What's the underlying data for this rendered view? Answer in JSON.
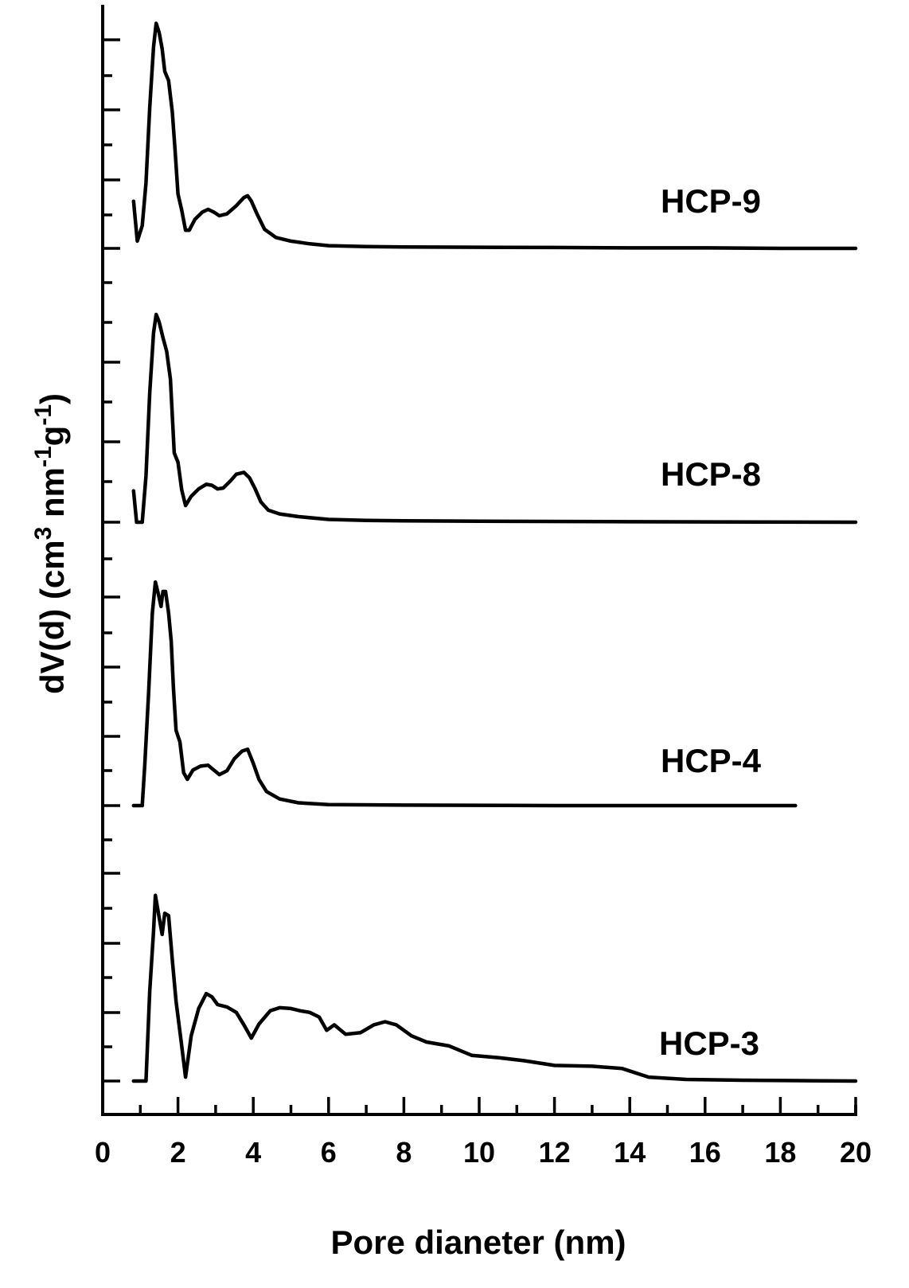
{
  "chart_data": {
    "type": "line",
    "title": "",
    "xlabel": "Pore dianeter (nm)",
    "ylabel_parts": {
      "a": "dV(d) (cm",
      "b": "3",
      "c": " nm",
      "d": "-1",
      "e": "g",
      "f": "-1",
      "g": ")"
    },
    "xlim": [
      0,
      20
    ],
    "xticks": [
      0,
      2,
      4,
      6,
      8,
      10,
      12,
      14,
      16,
      18,
      20
    ],
    "y_tick_labels": "none",
    "grid": false,
    "legend": "none (series labeled directly to the right of each curve)",
    "layout": "stacked curves with vertical offsets",
    "series": [
      {
        "name": "HCP-9",
        "points": [
          [
            0.82,
            0.52
          ],
          [
            0.92,
            0.08
          ],
          [
            1.05,
            0.25
          ],
          [
            1.15,
            0.72
          ],
          [
            1.25,
            1.55
          ],
          [
            1.35,
            2.22
          ],
          [
            1.42,
            2.48
          ],
          [
            1.5,
            2.38
          ],
          [
            1.58,
            2.2
          ],
          [
            1.65,
            1.95
          ],
          [
            1.75,
            1.85
          ],
          [
            1.85,
            1.5
          ],
          [
            1.92,
            1.1
          ],
          [
            2.0,
            0.6
          ],
          [
            2.1,
            0.42
          ],
          [
            2.2,
            0.2
          ],
          [
            2.3,
            0.2
          ],
          [
            2.45,
            0.32
          ],
          [
            2.65,
            0.4
          ],
          [
            2.8,
            0.43
          ],
          [
            2.95,
            0.4
          ],
          [
            3.1,
            0.36
          ],
          [
            3.3,
            0.38
          ],
          [
            3.55,
            0.47
          ],
          [
            3.75,
            0.56
          ],
          [
            3.85,
            0.58
          ],
          [
            3.95,
            0.52
          ],
          [
            4.1,
            0.38
          ],
          [
            4.3,
            0.21
          ],
          [
            4.6,
            0.12
          ],
          [
            5.0,
            0.08
          ],
          [
            5.5,
            0.05
          ],
          [
            6.0,
            0.03
          ],
          [
            7,
            0.02
          ],
          [
            8,
            0.015
          ],
          [
            10,
            0.012
          ],
          [
            12,
            0.01
          ],
          [
            14,
            0.005
          ],
          [
            16,
            0.005
          ],
          [
            18,
            0.0
          ],
          [
            20,
            0.0
          ]
        ]
      },
      {
        "name": "HCP-8",
        "points": [
          [
            0.82,
            0.34
          ],
          [
            0.9,
            0.0
          ],
          [
            1.05,
            0.0
          ],
          [
            1.15,
            0.5
          ],
          [
            1.25,
            1.4
          ],
          [
            1.35,
            2.05
          ],
          [
            1.42,
            2.25
          ],
          [
            1.5,
            2.17
          ],
          [
            1.6,
            2.0
          ],
          [
            1.7,
            1.85
          ],
          [
            1.8,
            1.55
          ],
          [
            1.9,
            0.75
          ],
          [
            2.0,
            0.65
          ],
          [
            2.1,
            0.35
          ],
          [
            2.2,
            0.18
          ],
          [
            2.35,
            0.28
          ],
          [
            2.55,
            0.36
          ],
          [
            2.75,
            0.41
          ],
          [
            2.9,
            0.4
          ],
          [
            3.05,
            0.36
          ],
          [
            3.2,
            0.37
          ],
          [
            3.4,
            0.45
          ],
          [
            3.55,
            0.52
          ],
          [
            3.75,
            0.54
          ],
          [
            3.9,
            0.48
          ],
          [
            4.05,
            0.36
          ],
          [
            4.2,
            0.22
          ],
          [
            4.4,
            0.13
          ],
          [
            4.7,
            0.09
          ],
          [
            5.2,
            0.06
          ],
          [
            6,
            0.03
          ],
          [
            7,
            0.02
          ],
          [
            8,
            0.015
          ],
          [
            10,
            0.01
          ],
          [
            14,
            0.005
          ],
          [
            20,
            0.0
          ]
        ]
      },
      {
        "name": "HCP-4",
        "points": [
          [
            0.82,
            0.0
          ],
          [
            1.05,
            0.0
          ],
          [
            1.12,
            0.45
          ],
          [
            1.22,
            1.2
          ],
          [
            1.32,
            2.05
          ],
          [
            1.4,
            2.38
          ],
          [
            1.48,
            2.25
          ],
          [
            1.55,
            2.12
          ],
          [
            1.6,
            2.28
          ],
          [
            1.67,
            2.28
          ],
          [
            1.75,
            2.05
          ],
          [
            1.82,
            1.75
          ],
          [
            1.88,
            1.25
          ],
          [
            1.95,
            0.8
          ],
          [
            2.05,
            0.68
          ],
          [
            2.15,
            0.35
          ],
          [
            2.25,
            0.28
          ],
          [
            2.4,
            0.38
          ],
          [
            2.6,
            0.42
          ],
          [
            2.8,
            0.43
          ],
          [
            2.95,
            0.38
          ],
          [
            3.1,
            0.33
          ],
          [
            3.3,
            0.37
          ],
          [
            3.5,
            0.5
          ],
          [
            3.7,
            0.58
          ],
          [
            3.85,
            0.6
          ],
          [
            4.0,
            0.45
          ],
          [
            4.15,
            0.28
          ],
          [
            4.35,
            0.15
          ],
          [
            4.7,
            0.07
          ],
          [
            5.2,
            0.03
          ],
          [
            6,
            0.01
          ],
          [
            8,
            0.005
          ],
          [
            12,
            0.0
          ],
          [
            16,
            0.0
          ],
          [
            18.4,
            0.0
          ]
        ]
      },
      {
        "name": "HCP-3",
        "points": [
          [
            0.82,
            0.0
          ],
          [
            1.15,
            0.0
          ],
          [
            1.25,
            1.15
          ],
          [
            1.35,
            1.92
          ],
          [
            1.4,
            2.38
          ],
          [
            1.5,
            2.1
          ],
          [
            1.58,
            1.88
          ],
          [
            1.65,
            2.15
          ],
          [
            1.75,
            2.12
          ],
          [
            1.85,
            1.55
          ],
          [
            1.95,
            1.02
          ],
          [
            2.1,
            0.45
          ],
          [
            2.2,
            0.05
          ],
          [
            2.35,
            0.58
          ],
          [
            2.55,
            0.93
          ],
          [
            2.75,
            1.12
          ],
          [
            2.9,
            1.08
          ],
          [
            3.05,
            0.98
          ],
          [
            3.3,
            0.95
          ],
          [
            3.55,
            0.88
          ],
          [
            3.75,
            0.72
          ],
          [
            3.95,
            0.55
          ],
          [
            4.15,
            0.73
          ],
          [
            4.45,
            0.9
          ],
          [
            4.7,
            0.94
          ],
          [
            5.0,
            0.93
          ],
          [
            5.25,
            0.9
          ],
          [
            5.5,
            0.88
          ],
          [
            5.75,
            0.82
          ],
          [
            5.95,
            0.65
          ],
          [
            6.15,
            0.72
          ],
          [
            6.45,
            0.6
          ],
          [
            6.85,
            0.62
          ],
          [
            7.2,
            0.72
          ],
          [
            7.5,
            0.76
          ],
          [
            7.8,
            0.72
          ],
          [
            8.2,
            0.58
          ],
          [
            8.6,
            0.5
          ],
          [
            9.2,
            0.45
          ],
          [
            9.8,
            0.33
          ],
          [
            10.5,
            0.3
          ],
          [
            11.2,
            0.26
          ],
          [
            12,
            0.2
          ],
          [
            13,
            0.19
          ],
          [
            13.8,
            0.16
          ],
          [
            14.5,
            0.05
          ],
          [
            15.5,
            0.02
          ],
          [
            17,
            0.01
          ],
          [
            18.5,
            0.005
          ],
          [
            20,
            0.0
          ]
        ]
      }
    ]
  }
}
